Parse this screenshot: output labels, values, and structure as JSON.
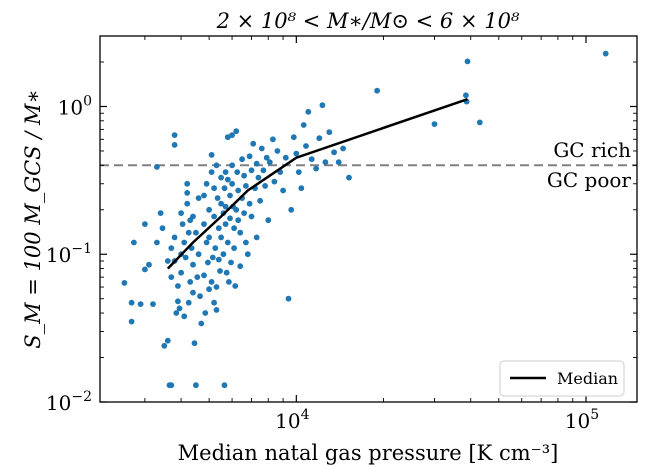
{
  "chart_data": {
    "type": "scatter",
    "title": "2 × 10⁸ < M∗/M⊙ < 6 × 10⁸",
    "xlabel": "Median natal gas pressure [K cm⁻³]",
    "ylabel": "S_M = 100 M_GCS / M∗",
    "xscale": "log",
    "yscale": "log",
    "xlim": [
      2100,
      150000
    ],
    "ylim": [
      0.01,
      3.0
    ],
    "x_ticks": [
      {
        "value": 10000,
        "base": "10",
        "exp": "4"
      },
      {
        "value": 100000,
        "base": "10",
        "exp": "5"
      }
    ],
    "y_ticks": [
      {
        "value": 0.01,
        "base": "10",
        "exp": "−2"
      },
      {
        "value": 0.1,
        "base": "10",
        "exp": "−1"
      },
      {
        "value": 1,
        "base": "10",
        "exp": "0"
      }
    ],
    "grid": false,
    "point_color": "#1f77b4",
    "threshold": {
      "y": 0.4,
      "color": "#808080",
      "style": "dashed",
      "label_above": "GC rich",
      "label_below": "GC poor"
    },
    "legend": {
      "location": "lower right",
      "entries": [
        "Median"
      ]
    },
    "series": [
      {
        "name": "Median",
        "kind": "line",
        "color": "#000000",
        "x": [
          3600,
          4400,
          5500,
          6800,
          10000,
          39000
        ],
        "y": [
          0.08,
          0.12,
          0.18,
          0.27,
          0.45,
          1.12
        ]
      },
      {
        "kind": "scatter",
        "color": "#1f77b4",
        "points": [
          [
            2550,
            0.064
          ],
          [
            2750,
            0.12
          ],
          [
            2700,
            0.035
          ],
          [
            2700,
            0.047
          ],
          [
            2900,
            0.046
          ],
          [
            3000,
            0.079
          ],
          [
            3000,
            0.16
          ],
          [
            3100,
            0.085
          ],
          [
            3200,
            0.046
          ],
          [
            3300,
            0.39
          ],
          [
            3300,
            0.12
          ],
          [
            3400,
            0.19
          ],
          [
            3450,
            0.15
          ],
          [
            3500,
            0.024
          ],
          [
            3600,
            0.026
          ],
          [
            3600,
            0.09
          ],
          [
            3700,
            0.11
          ],
          [
            3700,
            0.07
          ],
          [
            3800,
            0.13
          ],
          [
            3800,
            0.09
          ],
          [
            3850,
            0.04
          ],
          [
            3900,
            0.061
          ],
          [
            3900,
            0.048
          ],
          [
            3950,
            0.043
          ],
          [
            3800,
            0.64
          ],
          [
            3800,
            0.55
          ],
          [
            3700,
            0.013
          ],
          [
            3650,
            0.013
          ],
          [
            4000,
            0.19
          ],
          [
            4000,
            0.1
          ],
          [
            4000,
            0.075
          ],
          [
            4050,
            0.16
          ],
          [
            4100,
            0.12
          ],
          [
            4100,
            0.038
          ],
          [
            4150,
            0.095
          ],
          [
            4200,
            0.3
          ],
          [
            4200,
            0.26
          ],
          [
            4200,
            0.22
          ],
          [
            4250,
            0.14
          ],
          [
            4250,
            0.047
          ],
          [
            4300,
            0.17
          ],
          [
            4300,
            0.065
          ],
          [
            4350,
            0.11
          ],
          [
            4400,
            0.18
          ],
          [
            4400,
            0.085
          ],
          [
            4400,
            0.055
          ],
          [
            4450,
            0.025
          ],
          [
            4500,
            0.013
          ],
          [
            4500,
            0.14
          ],
          [
            4550,
            0.07
          ],
          [
            4600,
            0.24
          ],
          [
            4600,
            0.1
          ],
          [
            4650,
            0.052
          ],
          [
            4700,
            0.034
          ],
          [
            4800,
            0.25
          ],
          [
            4800,
            0.16
          ],
          [
            4800,
            0.072
          ],
          [
            4850,
            0.04
          ],
          [
            4900,
            0.3
          ],
          [
            4900,
            0.12
          ],
          [
            4950,
            0.088
          ],
          [
            5000,
            0.2
          ],
          [
            5000,
            0.13
          ],
          [
            5000,
            0.058
          ],
          [
            5100,
            0.47
          ],
          [
            5100,
            0.36
          ],
          [
            5100,
            0.065
          ],
          [
            5150,
            0.095
          ],
          [
            5200,
            0.28
          ],
          [
            5200,
            0.18
          ],
          [
            5200,
            0.047
          ],
          [
            5250,
            0.11
          ],
          [
            5300,
            0.4
          ],
          [
            5300,
            0.06
          ],
          [
            5300,
            0.042
          ],
          [
            5350,
            0.24
          ],
          [
            5400,
            0.15
          ],
          [
            5400,
            0.092
          ],
          [
            5450,
            0.077
          ],
          [
            5500,
            0.33
          ],
          [
            5500,
            0.22
          ],
          [
            5500,
            0.13
          ],
          [
            5600,
            0.19
          ],
          [
            5600,
            0.1
          ],
          [
            5650,
            0.28
          ],
          [
            5650,
            0.013
          ],
          [
            5700,
            0.36
          ],
          [
            5700,
            0.21
          ],
          [
            5700,
            0.16
          ],
          [
            5750,
            0.075
          ],
          [
            5800,
            0.62
          ],
          [
            5800,
            0.32
          ],
          [
            5800,
            0.12
          ],
          [
            5850,
            0.065
          ],
          [
            5900,
            0.25
          ],
          [
            5900,
            0.175
          ],
          [
            5950,
            0.088
          ],
          [
            6000,
            0.64
          ],
          [
            6000,
            0.4
          ],
          [
            6000,
            0.3
          ],
          [
            6050,
            0.21
          ],
          [
            6100,
            0.15
          ],
          [
            6100,
            0.11
          ],
          [
            6150,
            0.061
          ],
          [
            6200,
            0.68
          ],
          [
            6200,
            0.2
          ],
          [
            6250,
            0.36
          ],
          [
            6300,
            0.27
          ],
          [
            6300,
            0.17
          ],
          [
            6400,
            0.14
          ],
          [
            6400,
            0.083
          ],
          [
            6500,
            0.44
          ],
          [
            6500,
            0.24
          ],
          [
            6600,
            0.34
          ],
          [
            6600,
            0.19
          ],
          [
            6700,
            0.12
          ],
          [
            6700,
            0.29
          ],
          [
            6800,
            0.1
          ],
          [
            6900,
            0.46
          ],
          [
            6900,
            0.22
          ],
          [
            7000,
            0.37
          ],
          [
            7000,
            0.18
          ],
          [
            7100,
            0.56
          ],
          [
            7200,
            0.28
          ],
          [
            7300,
            0.41
          ],
          [
            7300,
            0.13
          ],
          [
            7400,
            0.33
          ],
          [
            7500,
            0.23
          ],
          [
            7600,
            0.52
          ],
          [
            7700,
            0.37
          ],
          [
            7800,
            0.29
          ],
          [
            7900,
            0.45
          ],
          [
            8000,
            0.17
          ],
          [
            8100,
            0.42
          ],
          [
            8300,
            0.6
          ],
          [
            8400,
            0.31
          ],
          [
            8600,
            0.5
          ],
          [
            8800,
            0.36
          ],
          [
            9000,
            0.27
          ],
          [
            9200,
            0.45
          ],
          [
            9400,
            0.05
          ],
          [
            9600,
            0.2
          ],
          [
            9800,
            0.62
          ],
          [
            10000,
            0.48
          ],
          [
            10200,
            0.36
          ],
          [
            10400,
            0.28
          ],
          [
            10600,
            0.75
          ],
          [
            10800,
            0.54
          ],
          [
            11000,
            0.92
          ],
          [
            11300,
            0.44
          ],
          [
            11700,
            0.38
          ],
          [
            12000,
            0.61
          ],
          [
            12300,
            1.02
          ],
          [
            12600,
            0.42
          ],
          [
            13000,
            0.67
          ],
          [
            13500,
            0.49
          ],
          [
            14000,
            0.42
          ],
          [
            14500,
            0.52
          ],
          [
            15200,
            0.33
          ],
          [
            19000,
            1.28
          ],
          [
            30000,
            0.76
          ],
          [
            38500,
            1.19
          ],
          [
            38700,
            1.08
          ],
          [
            39000,
            2.02
          ],
          [
            43000,
            0.78
          ],
          [
            117000,
            2.28
          ]
        ]
      }
    ]
  }
}
